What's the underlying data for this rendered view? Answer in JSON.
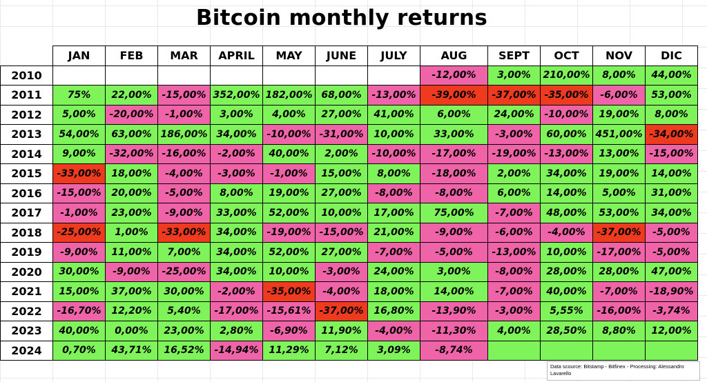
{
  "title": "Bitcoin monthly returns",
  "source_note": "Data scource: Bitstamp - Bitfinex - Processing: Alessandro Lavarello",
  "colors": {
    "positive": "#7ef35a",
    "negative": "#ef64a8",
    "large_drop": "#ee3a1e"
  },
  "chart_data": {
    "type": "table",
    "title": "Bitcoin monthly returns",
    "columns": [
      "JAN",
      "FEB",
      "MAR",
      "APRIL",
      "MAY",
      "JUNE",
      "JULY",
      "AUG",
      "SEPT",
      "OCT",
      "NOV",
      "DIC"
    ],
    "rows": [
      {
        "year": "2010",
        "cells": [
          "",
          "",
          "",
          "",
          "",
          "",
          "",
          "-12,00%",
          "3,00%",
          "210,00%",
          "8,00%",
          "44,00%"
        ]
      },
      {
        "year": "2011",
        "cells": [
          "75%",
          "22,00%",
          "-15,00%",
          "352,00%",
          "182,00%",
          "68,00%",
          "-13,00%",
          "-39,00%",
          "-37,00%",
          "-35,00%",
          "-6,00%",
          "53,00%"
        ]
      },
      {
        "year": "2012",
        "cells": [
          "5,00%",
          "-20,00%",
          "-1,00%",
          "3,00%",
          "4,00%",
          "27,00%",
          "41,00%",
          "6,00%",
          "24,00%",
          "-10,00%",
          "19,00%",
          "8,00%"
        ]
      },
      {
        "year": "2013",
        "cells": [
          "54,00%",
          "63,00%",
          "186,00%",
          "34,00%",
          "-10,00%",
          "-31,00%",
          "10,00%",
          "33,00%",
          "-3,00%",
          "60,00%",
          "451,00%",
          "-34,00%"
        ]
      },
      {
        "year": "2014",
        "cells": [
          "9,00%",
          "-32,00%",
          "-16,00%",
          "-2,00%",
          "40,00%",
          "2,00%",
          "-10,00%",
          "-17,00%",
          "-19,00%",
          "-13,00%",
          "13,00%",
          "-15,00%"
        ]
      },
      {
        "year": "2015",
        "cells": [
          "-33,00%",
          "18,00%",
          "-4,00%",
          "-3,00%",
          "-1,00%",
          "15,00%",
          "8,00%",
          "-18,00%",
          "2,00%",
          "34,00%",
          "19,00%",
          "14,00%"
        ]
      },
      {
        "year": "2016",
        "cells": [
          "-15,00%",
          "20,00%",
          "-5,00%",
          "8,00%",
          "19,00%",
          "27,00%",
          "-8,00%",
          "-8,00%",
          "6,00%",
          "14,00%",
          "5,00%",
          "31,00%"
        ]
      },
      {
        "year": "2017",
        "cells": [
          "-1,00%",
          "23,00%",
          "-9,00%",
          "33,00%",
          "52,00%",
          "10,00%",
          "17,00%",
          "75,00%",
          "-7,00%",
          "48,00%",
          "53,00%",
          "34,00%"
        ]
      },
      {
        "year": "2018",
        "cells": [
          "-25,00%",
          "1,00%",
          "-33,00%",
          "34,00%",
          "-19,00%",
          "-15,00%",
          "21,00%",
          "-9,00%",
          "-6,00%",
          "-4,00%",
          "-37,00%",
          "-5,00%"
        ]
      },
      {
        "year": "2019",
        "cells": [
          "-9,00%",
          "11,00%",
          "7,00%",
          "34,00%",
          "52,00%",
          "27,00%",
          "-7,00%",
          "-5,00%",
          "-13,00%",
          "10,00%",
          "-17,00%",
          "-5,00%"
        ]
      },
      {
        "year": "2020",
        "cells": [
          "30,00%",
          "-9,00%",
          "-25,00%",
          "34,00%",
          "10,00%",
          "-3,00%",
          "24,00%",
          "3,00%",
          "-8,00%",
          "28,00%",
          "28,00%",
          "47,00%"
        ]
      },
      {
        "year": "2021",
        "cells": [
          "15,00%",
          "37,00%",
          "30,00%",
          "-2,00%",
          "-35,00%",
          "-4,00%",
          "18,00%",
          "14,00%",
          "-7,00%",
          "40,00%",
          "-7,00%",
          "-18,90%"
        ]
      },
      {
        "year": "2022",
        "cells": [
          "-16,70%",
          "12,20%",
          "5,40%",
          "-17,00%",
          "-15,61%",
          "-37,00%",
          "16,80%",
          "-13,90%",
          "-3,00%",
          "5,55%",
          "-16,00%",
          "-3,74%"
        ]
      },
      {
        "year": "2023",
        "cells": [
          "40,00%",
          "0,00%",
          "23,00%",
          "2,80%",
          "-6,90%",
          "11,90%",
          "-4,00%",
          "-11,30%",
          "4,00%",
          "28,50%",
          "8,80%",
          "12,00%"
        ]
      },
      {
        "year": "2024",
        "cells": [
          "0,70%",
          "43,71%",
          "16,52%",
          "-14,94%",
          "11,29%",
          "7,12%",
          "3,09%",
          "-8,74%",
          "",
          "",
          "",
          ""
        ]
      }
    ],
    "cell_colors": [
      [
        "",
        "",
        "",
        "",
        "",
        "",
        "",
        "neg",
        "pos",
        "pos",
        "pos",
        "pos"
      ],
      [
        "pos",
        "pos",
        "neg",
        "pos",
        "pos",
        "pos",
        "neg",
        "big",
        "big",
        "big",
        "neg",
        "pos"
      ],
      [
        "pos",
        "neg",
        "neg",
        "pos",
        "pos",
        "pos",
        "pos",
        "pos",
        "pos",
        "neg",
        "pos",
        "pos"
      ],
      [
        "pos",
        "pos",
        "pos",
        "pos",
        "neg",
        "neg",
        "pos",
        "pos",
        "neg",
        "pos",
        "pos",
        "big"
      ],
      [
        "pos",
        "neg",
        "neg",
        "neg",
        "pos",
        "pos",
        "neg",
        "neg",
        "neg",
        "neg",
        "pos",
        "neg"
      ],
      [
        "big",
        "pos",
        "neg",
        "neg",
        "neg",
        "pos",
        "pos",
        "neg",
        "pos",
        "pos",
        "pos",
        "pos"
      ],
      [
        "neg",
        "pos",
        "neg",
        "pos",
        "pos",
        "pos",
        "neg",
        "neg",
        "pos",
        "pos",
        "pos",
        "pos"
      ],
      [
        "neg",
        "pos",
        "neg",
        "pos",
        "pos",
        "pos",
        "pos",
        "pos",
        "neg",
        "pos",
        "pos",
        "pos"
      ],
      [
        "big",
        "pos",
        "big",
        "pos",
        "neg",
        "neg",
        "pos",
        "neg",
        "neg",
        "neg",
        "big",
        "neg"
      ],
      [
        "neg",
        "pos",
        "pos",
        "pos",
        "pos",
        "pos",
        "neg",
        "neg",
        "neg",
        "pos",
        "neg",
        "neg"
      ],
      [
        "pos",
        "neg",
        "neg",
        "pos",
        "pos",
        "neg",
        "pos",
        "pos",
        "neg",
        "pos",
        "pos",
        "pos"
      ],
      [
        "pos",
        "pos",
        "pos",
        "neg",
        "big",
        "neg",
        "pos",
        "pos",
        "neg",
        "pos",
        "neg",
        "neg"
      ],
      [
        "neg",
        "pos",
        "pos",
        "neg",
        "neg",
        "big",
        "pos",
        "neg",
        "neg",
        "pos",
        "neg",
        "neg"
      ],
      [
        "pos",
        "pos",
        "pos",
        "pos",
        "neg",
        "pos",
        "neg",
        "neg",
        "pos",
        "pos",
        "pos",
        "pos"
      ],
      [
        "pos",
        "pos",
        "pos",
        "neg",
        "pos",
        "pos",
        "pos",
        "neg",
        "pos",
        "pos",
        "pos",
        "pos"
      ]
    ]
  }
}
